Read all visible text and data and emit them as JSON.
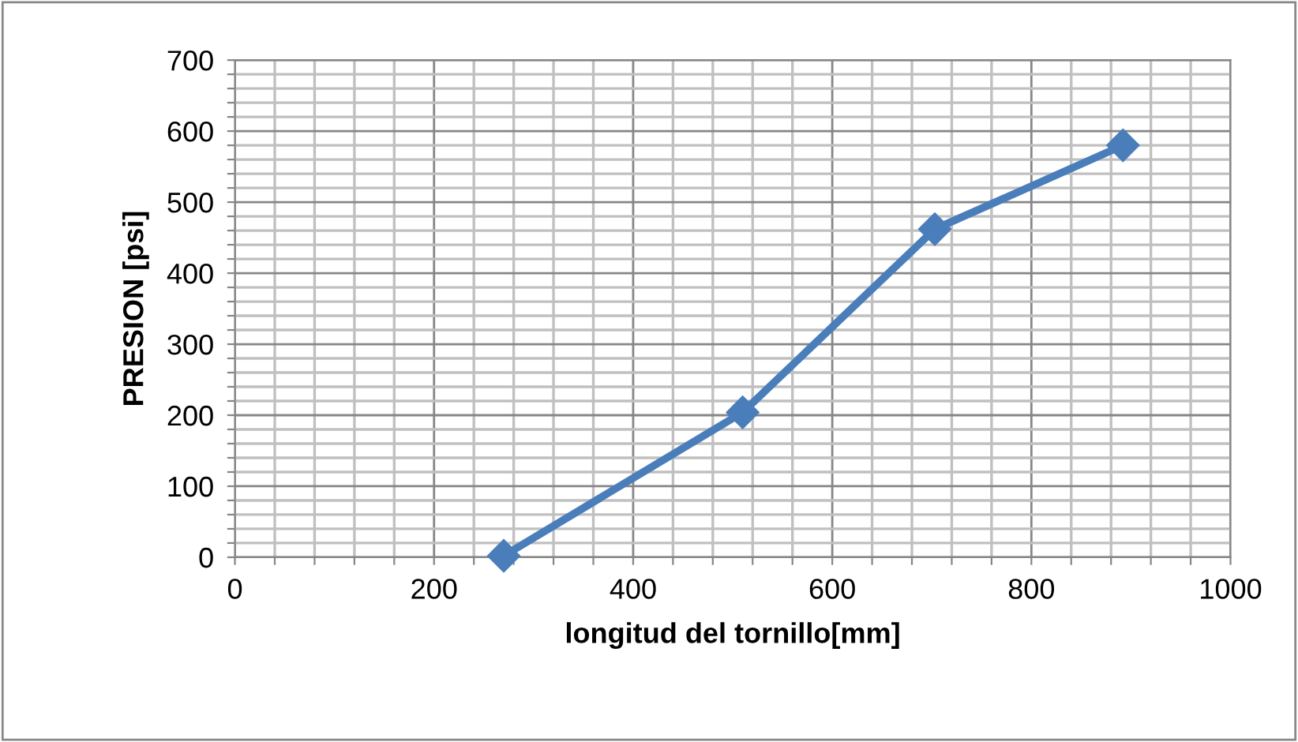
{
  "chart_data": {
    "type": "line",
    "xlabel": "longitud del tornillo[mm]",
    "ylabel": "PRESION [psi]",
    "x": [
      270,
      510,
      703,
      892
    ],
    "series": [
      {
        "color": "#4a7ebb",
        "values": [
          2,
          204,
          462,
          580
        ]
      }
    ],
    "xlim": [
      0,
      1000
    ],
    "ylim": [
      0,
      700
    ],
    "xticks": [
      0,
      {
        "value": 40,
        "label": null
      },
      {
        "value": 80,
        "label": null
      },
      {
        "value": 120,
        "label": null
      },
      {
        "value": 160,
        "label": null
      },
      200,
      {
        "value": 240,
        "label": null
      },
      {
        "value": 280,
        "label": null
      },
      {
        "value": 320,
        "label": null
      },
      {
        "value": 360,
        "label": null
      },
      400,
      {
        "value": 440,
        "label": null
      },
      {
        "value": 480,
        "label": null
      },
      {
        "value": 520,
        "label": null
      },
      {
        "value": 560,
        "label": null
      },
      600,
      {
        "value": 640,
        "label": null
      },
      {
        "value": 680,
        "label": null
      },
      {
        "value": 720,
        "label": null
      },
      {
        "value": 760,
        "label": null
      },
      800,
      {
        "value": 840,
        "label": null
      },
      {
        "value": 880,
        "label": null
      },
      {
        "value": 920,
        "label": null
      },
      {
        "value": 960,
        "label": null
      },
      1000
    ],
    "yticks": [
      0,
      {
        "value": 20,
        "label": null
      },
      {
        "value": 40,
        "label": null
      },
      {
        "value": 60,
        "label": null
      },
      {
        "value": 80,
        "label": null
      },
      100,
      {
        "value": 120,
        "label": null
      },
      {
        "value": 140,
        "label": null
      },
      {
        "value": 160,
        "label": null
      },
      {
        "value": 180,
        "label": null
      },
      200,
      {
        "value": 220,
        "label": null
      },
      {
        "value": 240,
        "label": null
      },
      {
        "value": 260,
        "label": null
      },
      {
        "value": 280,
        "label": null
      },
      300,
      {
        "value": 320,
        "label": null
      },
      {
        "value": 340,
        "label": null
      },
      {
        "value": 360,
        "label": null
      },
      {
        "value": 380,
        "label": null
      },
      400,
      {
        "value": 420,
        "label": null
      },
      {
        "value": 440,
        "label": null
      },
      {
        "value": 460,
        "label": null
      },
      {
        "value": 480,
        "label": null
      },
      500,
      {
        "value": 520,
        "label": null
      },
      {
        "value": 540,
        "label": null
      },
      {
        "value": 560,
        "label": null
      },
      {
        "value": 580,
        "label": null
      },
      600,
      {
        "value": 620,
        "label": null
      },
      {
        "value": 640,
        "label": null
      },
      {
        "value": 660,
        "label": null
      },
      {
        "value": 680,
        "label": null
      },
      700
    ],
    "grid": true,
    "marker": "diamond",
    "line_style": "solid",
    "legend": false
  }
}
